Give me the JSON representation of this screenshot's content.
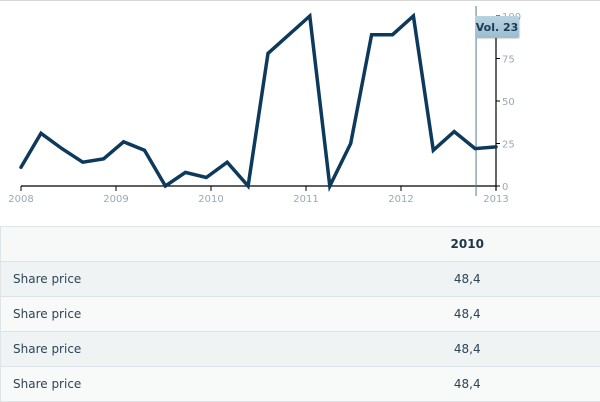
{
  "chart_data": {
    "type": "line",
    "title": "",
    "xlabel": "",
    "ylabel": "",
    "x_ticks": [
      "2008",
      "2009",
      "2010",
      "2011",
      "2012",
      "2013"
    ],
    "y_ticks": [
      0,
      25,
      50,
      75,
      100
    ],
    "ylim": [
      0,
      100
    ],
    "grid": false,
    "series": [
      {
        "name": "Share price",
        "color": "#0d3a5c",
        "x": [
          2008.0,
          2008.21,
          2008.43,
          2008.65,
          2008.87,
          2009.08,
          2009.3,
          2009.52,
          2009.73,
          2009.95,
          2010.17,
          2010.39,
          2010.6,
          2011.04,
          2011.25,
          2011.47,
          2011.69,
          2011.91,
          2012.13,
          2012.34,
          2012.56,
          2012.78,
          2013.0
        ],
        "values": [
          11,
          31,
          22,
          14,
          16,
          26,
          21,
          0,
          8,
          5,
          14,
          0,
          78,
          100,
          0,
          25,
          89,
          89,
          100,
          21,
          32,
          22,
          23
        ]
      }
    ],
    "tooltip": "Vol. 23",
    "crosshair_x": 2012.79
  },
  "tooltip": {
    "label": "Vol. 23"
  },
  "axis": {
    "x_labels": [
      "2008",
      "2009",
      "2010",
      "2011",
      "2012",
      "2013"
    ],
    "y_labels": [
      "0",
      "25",
      "50",
      "75",
      "100"
    ]
  },
  "table": {
    "header": {
      "label": "",
      "value": "2010"
    },
    "rows": [
      {
        "label": "Share price",
        "value": "48,4"
      },
      {
        "label": "Share price",
        "value": "48,4"
      },
      {
        "label": "Share price",
        "value": "48,4"
      },
      {
        "label": "Share price",
        "value": "48,4"
      }
    ]
  }
}
